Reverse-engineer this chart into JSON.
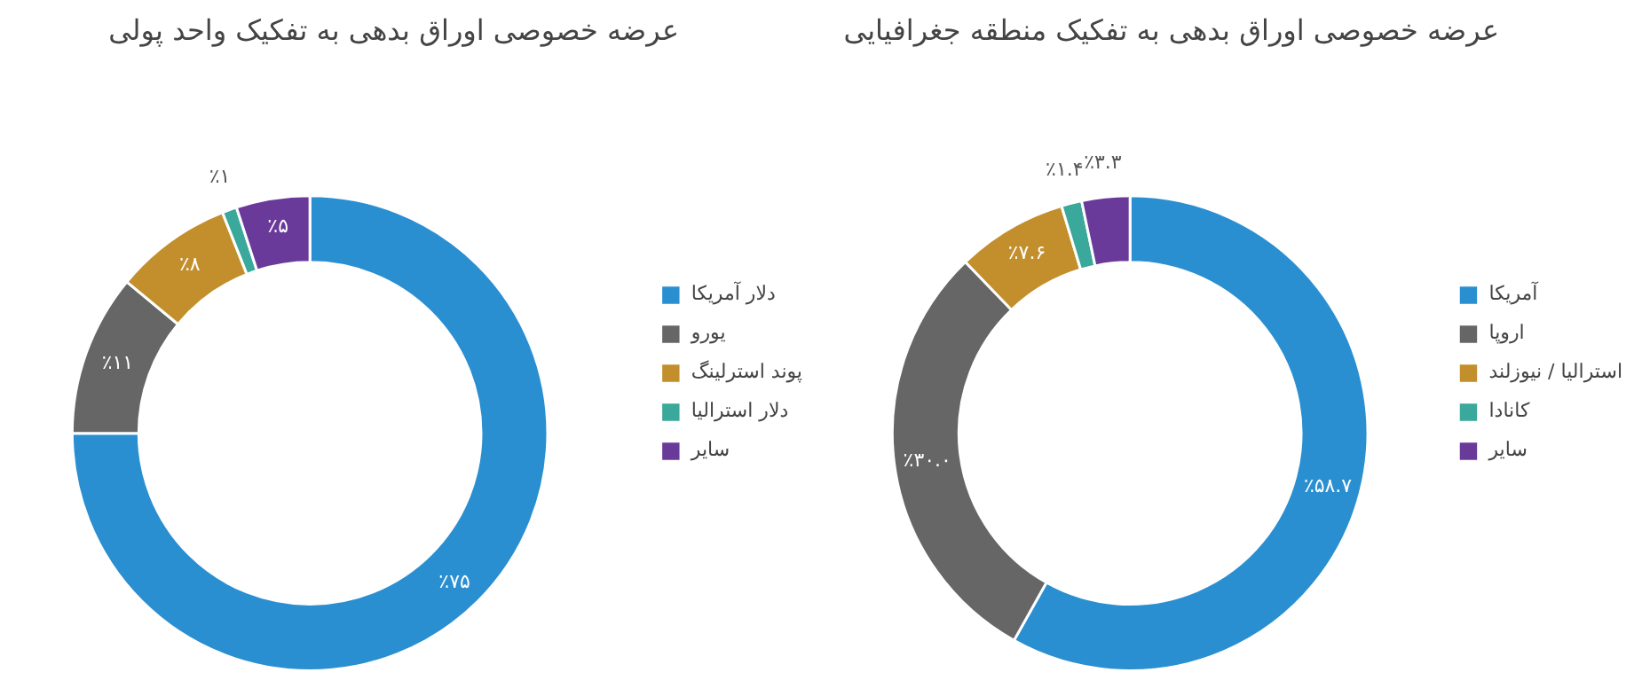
{
  "chart_data": [
    {
      "type": "donut",
      "title": "عرضه خصوصی اوراق بدهی به تفکیک واحد پولی",
      "categories": [
        "دلار آمریکا",
        "یورو",
        "پوند استرلینگ",
        "دلار استرالیا",
        "سایر"
      ],
      "values": [
        75,
        11,
        8,
        1,
        5
      ],
      "colors": [
        "#2a8fd1",
        "#666666",
        "#c28f2c",
        "#3aa89a",
        "#6a3a9b"
      ],
      "value_labels": [
        "٪۷۵",
        "٪۱۱",
        "٪۸",
        "٪۱",
        "٪۵"
      ],
      "legend": "right"
    },
    {
      "type": "donut",
      "title": "عرضه خصوصی اوراق بدهی به تفکیک منطقه جغرافیایی",
      "categories": [
        "آمریکا",
        "اروپا",
        "استرالیا / نیوزلند",
        "کانادا",
        "سایر"
      ],
      "values": [
        58.7,
        30.0,
        7.6,
        1.4,
        3.3
      ],
      "colors": [
        "#2a8fd1",
        "#666666",
        "#c28f2c",
        "#3aa89a",
        "#6a3a9b"
      ],
      "value_labels": [
        "٪۵۸.۷",
        "٪۳۰.۰",
        "٪۷.۶",
        "٪۱.۴",
        "٪۳.۳"
      ],
      "legend": "right"
    }
  ]
}
